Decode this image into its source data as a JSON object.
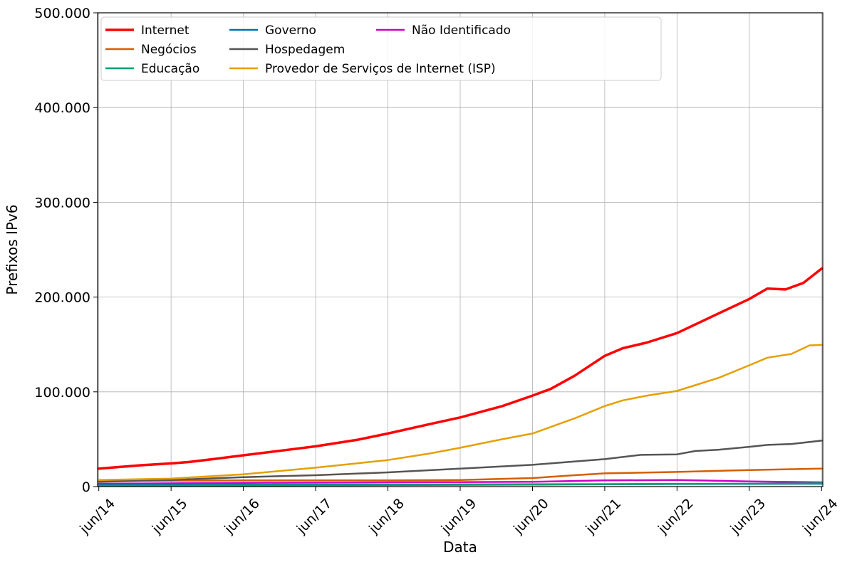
{
  "chart_data": {
    "type": "line",
    "xlabel": "Data",
    "ylabel": "Prefixos IPv6",
    "xlim": [
      "2014-06",
      "2024-06"
    ],
    "ylim": [
      0,
      500000
    ],
    "x_ticks": [
      {
        "label": "jun/14",
        "date": "2014-06"
      },
      {
        "label": "jun/15",
        "date": "2015-06"
      },
      {
        "label": "jun/16",
        "date": "2016-06"
      },
      {
        "label": "jun/17",
        "date": "2017-06"
      },
      {
        "label": "jun/18",
        "date": "2018-06"
      },
      {
        "label": "jun/19",
        "date": "2019-06"
      },
      {
        "label": "jun/20",
        "date": "2020-06"
      },
      {
        "label": "jun/21",
        "date": "2021-06"
      },
      {
        "label": "jun/22",
        "date": "2022-06"
      },
      {
        "label": "jun/23",
        "date": "2023-06"
      },
      {
        "label": "jun/24",
        "date": "2024-06"
      }
    ],
    "y_ticks": [
      {
        "label": "0",
        "value": 0
      },
      {
        "label": "100.000",
        "value": 100000
      },
      {
        "label": "200.000",
        "value": 200000
      },
      {
        "label": "300.000",
        "value": 300000
      },
      {
        "label": "400.000",
        "value": 400000
      },
      {
        "label": "500.000",
        "value": 500000
      }
    ],
    "grid": true,
    "legend_position": "top-left",
    "legend_columns": 3,
    "series": [
      {
        "name": "Internet",
        "color": "#ff0000",
        "width": 3.5,
        "points": [
          [
            "2014-06",
            19000
          ],
          [
            "2015-01",
            22500
          ],
          [
            "2015-06",
            24500
          ],
          [
            "2015-09",
            26000
          ],
          [
            "2016-01",
            29000
          ],
          [
            "2016-06",
            33000
          ],
          [
            "2017-01",
            38500
          ],
          [
            "2017-06",
            42500
          ],
          [
            "2018-01",
            49500
          ],
          [
            "2018-06",
            56000
          ],
          [
            "2019-01",
            66000
          ],
          [
            "2019-06",
            73000
          ],
          [
            "2020-01",
            85000
          ],
          [
            "2020-06",
            96000
          ],
          [
            "2020-09",
            103000
          ],
          [
            "2021-01",
            117000
          ],
          [
            "2021-06",
            138000
          ],
          [
            "2021-09",
            146000
          ],
          [
            "2022-01",
            152000
          ],
          [
            "2022-06",
            162000
          ],
          [
            "2022-09",
            171000
          ],
          [
            "2023-01",
            183000
          ],
          [
            "2023-06",
            198000
          ],
          [
            "2023-09",
            209000
          ],
          [
            "2023-12",
            208000
          ],
          [
            "2024-03",
            215000
          ],
          [
            "2024-06",
            230000
          ]
        ]
      },
      {
        "name": "Negócios",
        "color": "#d55e00",
        "width": 2.5,
        "points": [
          [
            "2014-06",
            6000
          ],
          [
            "2016-06",
            6500
          ],
          [
            "2018-06",
            6500
          ],
          [
            "2019-06",
            7000
          ],
          [
            "2020-06",
            9000
          ],
          [
            "2021-01",
            12000
          ],
          [
            "2021-06",
            14000
          ],
          [
            "2022-06",
            15500
          ],
          [
            "2023-06",
            17500
          ],
          [
            "2024-06",
            19000
          ]
        ]
      },
      {
        "name": "Educação",
        "color": "#009e73",
        "width": 2.5,
        "points": [
          [
            "2014-06",
            1000
          ],
          [
            "2016-06",
            1300
          ],
          [
            "2018-06",
            1600
          ],
          [
            "2020-06",
            2000
          ],
          [
            "2021-06",
            2500
          ],
          [
            "2022-06",
            2800
          ],
          [
            "2023-06",
            3000
          ],
          [
            "2024-06",
            3500
          ]
        ]
      },
      {
        "name": "Governo",
        "color": "#0072b2",
        "width": 2.5,
        "points": [
          [
            "2014-06",
            1800
          ],
          [
            "2016-06",
            2000
          ],
          [
            "2018-06",
            2200
          ],
          [
            "2020-06",
            2400
          ],
          [
            "2022-06",
            2700
          ],
          [
            "2024-06",
            3000
          ]
        ]
      },
      {
        "name": "Hospedagem",
        "color": "#555555",
        "width": 2.5,
        "points": [
          [
            "2014-06",
            5000
          ],
          [
            "2015-06",
            7000
          ],
          [
            "2016-06",
            10000
          ],
          [
            "2017-06",
            12000
          ],
          [
            "2018-06",
            15000
          ],
          [
            "2019-06",
            19000
          ],
          [
            "2020-06",
            23000
          ],
          [
            "2020-12",
            26000
          ],
          [
            "2021-06",
            29000
          ],
          [
            "2021-12",
            33500
          ],
          [
            "2022-06",
            34000
          ],
          [
            "2022-09",
            37500
          ],
          [
            "2023-01",
            39000
          ],
          [
            "2023-06",
            42000
          ],
          [
            "2023-09",
            44000
          ],
          [
            "2024-01",
            45000
          ],
          [
            "2024-06",
            48500
          ]
        ]
      },
      {
        "name": "Provedor de Serviços de Internet (ISP)",
        "color": "#e69f00",
        "width": 2.5,
        "points": [
          [
            "2014-06",
            7000
          ],
          [
            "2015-06",
            8500
          ],
          [
            "2016-06",
            13000
          ],
          [
            "2017-06",
            20000
          ],
          [
            "2018-06",
            28000
          ],
          [
            "2019-01",
            35000
          ],
          [
            "2019-06",
            41000
          ],
          [
            "2020-01",
            50000
          ],
          [
            "2020-06",
            56000
          ],
          [
            "2021-01",
            72000
          ],
          [
            "2021-06",
            85000
          ],
          [
            "2021-09",
            91000
          ],
          [
            "2022-01",
            96000
          ],
          [
            "2022-06",
            101000
          ],
          [
            "2022-09",
            107000
          ],
          [
            "2023-01",
            115000
          ],
          [
            "2023-06",
            128000
          ],
          [
            "2023-09",
            136000
          ],
          [
            "2024-01",
            140000
          ],
          [
            "2024-04",
            149000
          ],
          [
            "2024-06",
            149500
          ]
        ]
      },
      {
        "name": "Não Identificado",
        "color": "#cc00cc",
        "width": 2.5,
        "points": [
          [
            "2014-06",
            3000
          ],
          [
            "2016-06",
            4000
          ],
          [
            "2018-06",
            4500
          ],
          [
            "2020-06",
            5000
          ],
          [
            "2021-06",
            6500
          ],
          [
            "2022-06",
            7000
          ],
          [
            "2023-06",
            5500
          ],
          [
            "2024-06",
            4500
          ]
        ]
      }
    ]
  }
}
